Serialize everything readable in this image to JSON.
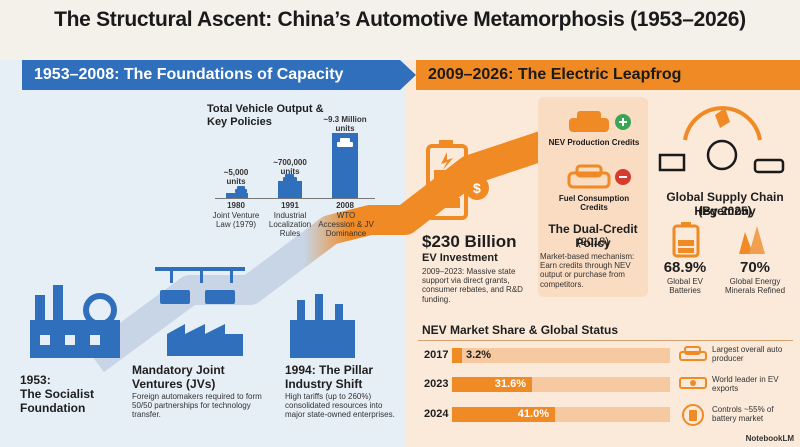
{
  "title": "The Structural Ascent: China’s Automotive Metamorphosis (1953–2026)",
  "banner_left": "1953–2008: The Foundations of Capacity",
  "banner_right": "2009–2026: The Electric Leapfrog",
  "output_chart": {
    "heading": "Total Vehicle Output & Key Policies",
    "bars": [
      {
        "year": "1980",
        "value_label": "~5,000 units",
        "policy": "Joint Venture Law (1979)",
        "value": 5000
      },
      {
        "year": "1991",
        "value_label": "~700,000 units",
        "policy": "Industrial Localization Rules",
        "value": 700000
      },
      {
        "year": "2008",
        "value_label": "~9.3 Million units",
        "policy": "WTO Accession & JV Dominance",
        "value": 9300000
      }
    ]
  },
  "founding": {
    "title_line1": "1953:",
    "title_line2": "The Socialist",
    "title_line3": "Foundation"
  },
  "jv": {
    "title": "Mandatory Joint Ventures (JVs)",
    "desc": "Foreign automakers required to form 50/50 partnerships for technology transfer."
  },
  "pillar": {
    "title": "1994: The Pillar Industry Shift",
    "desc": "High tariffs (up to 260%) consolidated resources into major state-owned enterprises."
  },
  "investment": {
    "amount": "$230 Billion",
    "label": "EV Investment",
    "desc": "2009–2023: Massive state support via direct grants, consumer rebates, and R&D funding."
  },
  "credits": {
    "nev": "NEV Production Credits",
    "fuel": "Fuel Consumption Credits",
    "policy_title": "The Dual-Credit Policy",
    "policy_year": "(2018)",
    "policy_desc": "Market-based mechanism: Earn credits through NEV output or purchase from competitors."
  },
  "supply": {
    "title": "Global Supply Chain Hegemony",
    "year": "(By 2025)",
    "stat1_value": "68.9%",
    "stat1_label": "Global EV Batteries",
    "stat2_value": "70%",
    "stat2_label": "Global Energy Minerals Refined"
  },
  "nev_market": {
    "heading": "NEV Market Share & Global Status",
    "rows": [
      {
        "year": "2017",
        "label": "3.2%",
        "value": 3.2,
        "status": "Largest overall auto producer"
      },
      {
        "year": "2023",
        "label": "31.6%",
        "value": 31.6,
        "status": "World leader in EV exports"
      },
      {
        "year": "2024",
        "label": "41.0%",
        "value": 41.0,
        "status": "Controls ~55% of battery market"
      }
    ]
  },
  "logo": "NotebookLM",
  "colors": {
    "blue": "#2f6fbc",
    "orange": "#f08a24",
    "light_orange": "#f7c9a0"
  }
}
